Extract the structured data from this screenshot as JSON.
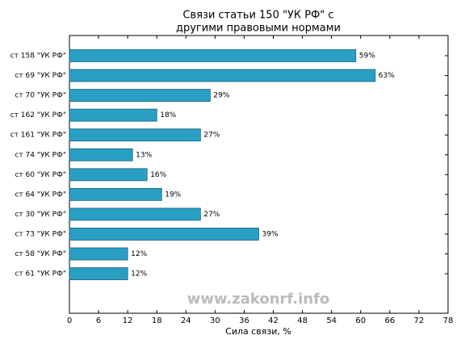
{
  "chart_data": {
    "type": "bar",
    "orientation": "horizontal",
    "title": [
      "Связи статьи 150 \"УК РФ\" с",
      "другими правовыми нормами"
    ],
    "xlabel": "Сила связи, %",
    "watermark": "www.zakonrf.info",
    "categories": [
      "ст 158 \"УК РФ\"",
      "ст 69 \"УК РФ\"",
      "ст 70 \"УК РФ\"",
      "ст 162 \"УК РФ\"",
      "ст 161 \"УК РФ\"",
      "ст 74 \"УК РФ\"",
      "ст 60 \"УК РФ\"",
      "ст 64 \"УК РФ\"",
      "ст 30 \"УК РФ\"",
      "ст 73 \"УК РФ\"",
      "ст 58 \"УК РФ\"",
      "ст 61 \"УК РФ\""
    ],
    "values": [
      59,
      63,
      29,
      18,
      27,
      13,
      16,
      19,
      27,
      39,
      12,
      12
    ],
    "value_labels": [
      "59%",
      "63%",
      "29%",
      "18%",
      "27%",
      "13%",
      "16%",
      "19%",
      "27%",
      "39%",
      "12%",
      "12%"
    ],
    "color": "#2a9fc4",
    "xlim": [
      0,
      78
    ],
    "xticks": [
      0,
      6,
      12,
      18,
      24,
      30,
      36,
      42,
      48,
      54,
      60,
      66,
      72,
      78
    ]
  }
}
